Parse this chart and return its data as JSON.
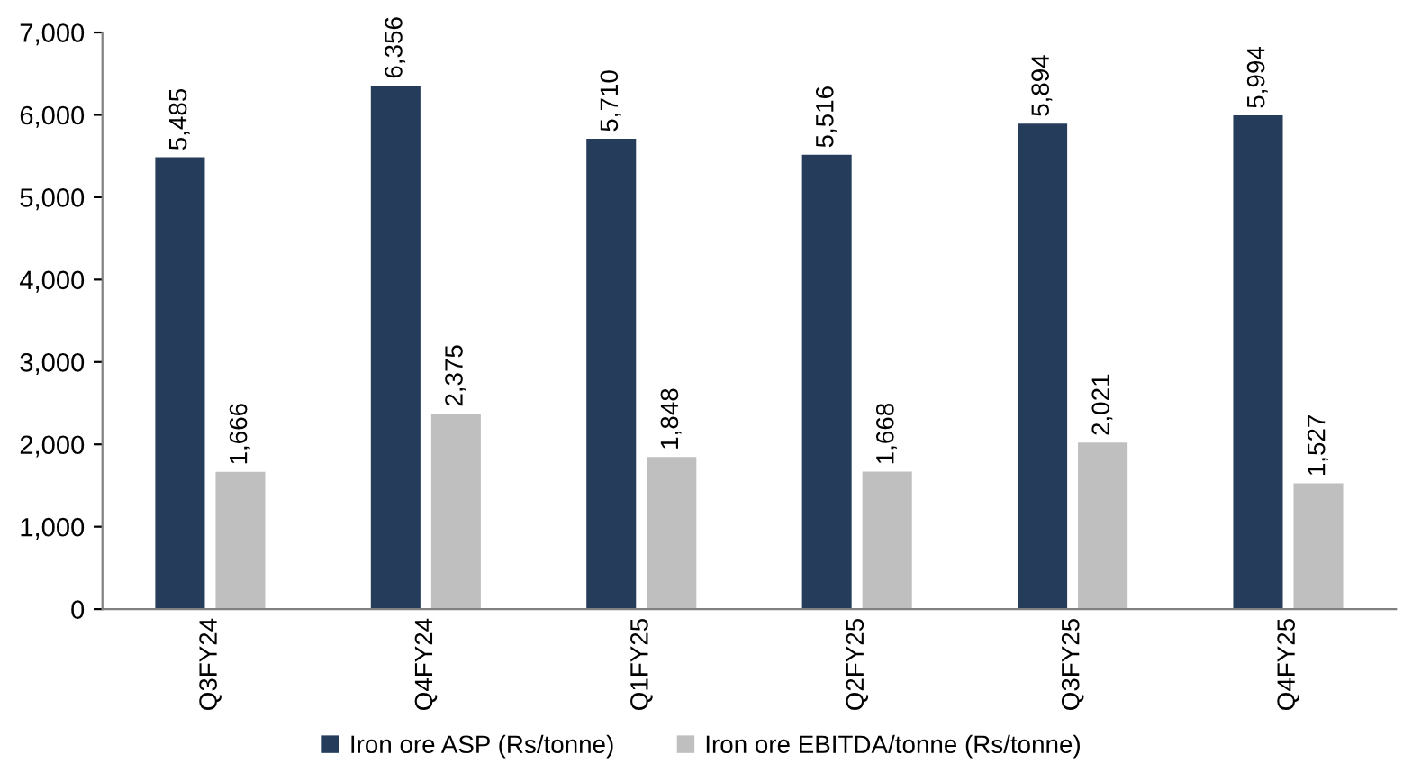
{
  "chart_data": {
    "type": "bar",
    "categories": [
      "Q3FY24",
      "Q4FY24",
      "Q1FY25",
      "Q2FY25",
      "Q3FY25",
      "Q4FY25"
    ],
    "series": [
      {
        "name": "Iron ore ASP (Rs/tonne)",
        "color": "#253d5b",
        "values": [
          5485,
          6356,
          5710,
          5516,
          5894,
          5994
        ],
        "value_labels": [
          "5,485",
          "6,356",
          "5,710",
          "5,516",
          "5,894",
          "5,994"
        ]
      },
      {
        "name": "Iron ore EBITDA/tonne (Rs/tonne)",
        "color": "#bfbfbf",
        "values": [
          1666,
          2375,
          1848,
          1668,
          2021,
          1527
        ],
        "value_labels": [
          "1,666",
          "2,375",
          "1,848",
          "1,668",
          "2,021",
          "1,527"
        ]
      }
    ],
    "ylim": [
      0,
      7000
    ],
    "yticks": [
      {
        "value": 0,
        "label": "0"
      },
      {
        "value": 1000,
        "label": "1,000"
      },
      {
        "value": 2000,
        "label": "2,000"
      },
      {
        "value": 3000,
        "label": "3,000"
      },
      {
        "value": 4000,
        "label": "4,000"
      },
      {
        "value": 5000,
        "label": "5,000"
      },
      {
        "value": 6000,
        "label": "6,000"
      },
      {
        "value": 7000,
        "label": "7,000"
      }
    ],
    "grid": false,
    "legend": "bottom"
  }
}
